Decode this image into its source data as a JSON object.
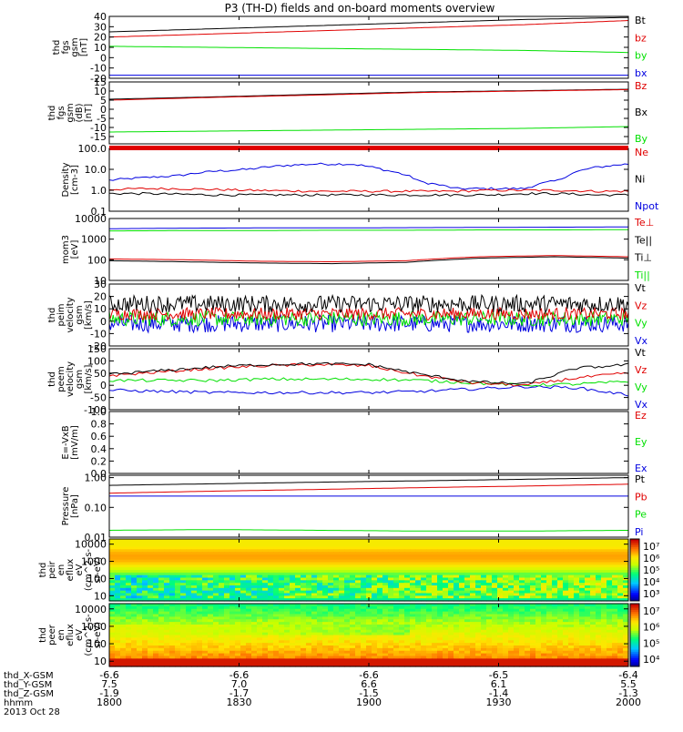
{
  "title": "P3 (TH-D) fields and on-board moments overview",
  "colors": {
    "black": "#000000",
    "red": "#e00000",
    "green": "#00e000",
    "blue": "#0000e0",
    "white": "#ffffff"
  },
  "panels": [
    {
      "ylabel": [
        "thd",
        "fgs",
        "gsm",
        "[nT]"
      ],
      "ticks": [
        "40",
        "30",
        "20",
        "10",
        "0",
        "-10",
        "-20"
      ],
      "ylim": [
        -20,
        40
      ],
      "scale": "linear",
      "legend": [
        {
          "text": "Bt",
          "color": "black"
        },
        {
          "text": "bz",
          "color": "red"
        },
        {
          "text": "by",
          "color": "green"
        },
        {
          "text": "bx",
          "color": "blue"
        }
      ],
      "series": [
        {
          "name": "Bt",
          "color": "black",
          "values": [
            25,
            28,
            31,
            34,
            37,
            39
          ]
        },
        {
          "name": "bz",
          "color": "red",
          "values": [
            20,
            23,
            26,
            29,
            32,
            36
          ]
        },
        {
          "name": "by",
          "color": "green",
          "values": [
            11,
            10,
            9,
            8,
            7,
            5
          ]
        },
        {
          "name": "bx",
          "color": "blue",
          "values": [
            -17,
            -17,
            -17,
            -17,
            -17,
            -17
          ]
        }
      ]
    },
    {
      "ylabel": [
        "thd",
        "fgs",
        "gsm",
        "(dB)",
        "[nT]"
      ],
      "ticks": [
        "15",
        "10",
        "5",
        "0",
        "-5",
        "-10",
        "-15"
      ],
      "ylim": [
        -19,
        15
      ],
      "scale": "linear",
      "legend": [
        {
          "text": "Bz",
          "color": "red"
        },
        {
          "text": "Bx",
          "color": "black"
        },
        {
          "text": "By",
          "color": "green"
        }
      ],
      "series": [
        {
          "name": "Bx",
          "color": "black",
          "values": [
            5.5,
            6.8,
            8.2,
            9.5,
            10.2,
            11
          ]
        },
        {
          "name": "Bz",
          "color": "red",
          "values": [
            5,
            6.5,
            7.8,
            9.2,
            10,
            10.8
          ]
        },
        {
          "name": "By",
          "color": "green",
          "values": [
            -12.5,
            -12,
            -11.5,
            -11,
            -10.5,
            -9.5
          ]
        }
      ]
    },
    {
      "ylabel": [
        "Density",
        "[cm-3]"
      ],
      "ticks": [
        "100.0",
        "10.0",
        "1.0",
        "0.1"
      ],
      "ylim": [
        0.1,
        100
      ],
      "scale": "log",
      "legend": [
        {
          "text": "Ne",
          "color": "red"
        },
        {
          "text": "Ni",
          "color": "black"
        },
        {
          "text": "Npot",
          "color": "blue"
        }
      ],
      "series": [
        {
          "name": "Npot",
          "color": "blue",
          "values": [
            3,
            4,
            5,
            8,
            10,
            15,
            18,
            18,
            9,
            2.5,
            1.2,
            1.2,
            1.2,
            3,
            12,
            18
          ]
        },
        {
          "name": "Ne",
          "color": "red",
          "values": [
            1.1,
            1.2,
            1.2,
            1.1,
            1.0,
            0.95,
            0.9,
            0.9,
            0.9,
            0.9,
            0.9,
            1.0,
            1.0,
            1.0,
            0.9,
            0.9
          ]
        },
        {
          "name": "Ni",
          "color": "black",
          "values": [
            0.7,
            0.7,
            0.65,
            0.6,
            0.6,
            0.6,
            0.6,
            0.6,
            0.6,
            0.6,
            0.6,
            0.6,
            0.7,
            0.7,
            0.6,
            0.6
          ]
        }
      ]
    },
    {
      "ylabel": [
        "mom3",
        "[eV]"
      ],
      "ticks": [
        "10000",
        "1000",
        "100",
        "10"
      ],
      "ylim": [
        10,
        10000
      ],
      "scale": "log",
      "legend": [
        {
          "text": "Te⊥",
          "color": "red"
        },
        {
          "text": "Te||",
          "color": "black"
        },
        {
          "text": "Ti⊥",
          "color": "black"
        },
        {
          "text": "Ti||",
          "color": "green"
        }
      ],
      "series": [
        {
          "name": "Ti⊥",
          "color": "blue",
          "values": [
            3200,
            3400,
            3500,
            3500,
            3600,
            3700,
            3800,
            3900
          ]
        },
        {
          "name": "Ti||",
          "color": "green",
          "values": [
            2500,
            2600,
            2600,
            2700,
            2700,
            2800,
            2800,
            2900
          ]
        },
        {
          "name": "Te⊥",
          "color": "red",
          "values": [
            110,
            100,
            85,
            80,
            90,
            140,
            160,
            140
          ]
        },
        {
          "name": "Te||",
          "color": "black",
          "values": [
            90,
            80,
            70,
            65,
            75,
            120,
            140,
            120
          ]
        }
      ]
    },
    {
      "ylabel": [
        "thd",
        "peim",
        "velocity",
        "gsm",
        "[km/s]"
      ],
      "ticks": [
        "30",
        "20",
        "10",
        "0",
        "-10",
        "-20"
      ],
      "ylim": [
        -20,
        30
      ],
      "scale": "linear",
      "legend": [
        {
          "text": "Vt",
          "color": "black"
        },
        {
          "text": "Vz",
          "color": "red"
        },
        {
          "text": "Vy",
          "color": "green"
        },
        {
          "text": "Vx",
          "color": "blue"
        }
      ],
      "series": [
        {
          "name": "Vx",
          "color": "blue",
          "mean": -2,
          "noise": 7
        },
        {
          "name": "Vy",
          "color": "green",
          "mean": 2,
          "noise": 6
        },
        {
          "name": "Vz",
          "color": "red",
          "mean": 6,
          "noise": 5
        },
        {
          "name": "Vt",
          "color": "black",
          "mean": 14,
          "noise": 7
        }
      ]
    },
    {
      "ylabel": [
        "thd",
        "peem",
        "velocity",
        "gsm",
        "[km/s]"
      ],
      "ticks": [
        "150",
        "100",
        "50",
        "0",
        "-50",
        "-100"
      ],
      "ylim": [
        -100,
        150
      ],
      "scale": "linear",
      "legend": [
        {
          "text": "Vt",
          "color": "black"
        },
        {
          "text": "Vz",
          "color": "red"
        },
        {
          "text": "Vy",
          "color": "green"
        },
        {
          "text": "Vx",
          "color": "blue"
        }
      ],
      "series": [
        {
          "name": "Vx",
          "color": "blue",
          "values": [
            -20,
            -25,
            -30,
            -30,
            -30,
            -30,
            -25,
            -15,
            -5,
            -10,
            -40
          ]
        },
        {
          "name": "Vy",
          "color": "green",
          "values": [
            20,
            20,
            20,
            25,
            25,
            25,
            20,
            10,
            0,
            5,
            15
          ]
        },
        {
          "name": "Vz",
          "color": "red",
          "values": [
            40,
            55,
            70,
            80,
            85,
            80,
            40,
            10,
            0,
            30,
            50
          ]
        },
        {
          "name": "Vt",
          "color": "black",
          "values": [
            45,
            60,
            75,
            85,
            88,
            85,
            45,
            15,
            5,
            70,
            85
          ]
        }
      ]
    },
    {
      "ylabel": [
        "E=-VxB",
        "[mV/m]"
      ],
      "ticks": [
        "1.0",
        "0.8",
        "0.6",
        "0.4",
        "0.2",
        "0.0"
      ],
      "ylim": [
        0,
        1
      ],
      "scale": "linear",
      "legend": [
        {
          "text": "Ez",
          "color": "red"
        },
        {
          "text": "Ey",
          "color": "green"
        },
        {
          "text": "Ex",
          "color": "blue"
        }
      ],
      "series": []
    },
    {
      "ylabel": [
        "Pressure",
        "[nPa]"
      ],
      "ticks": [
        "1.00",
        "0.10",
        "0.01"
      ],
      "ylim": [
        0.01,
        1.2
      ],
      "scale": "log",
      "legend": [
        {
          "text": "Pt",
          "color": "black"
        },
        {
          "text": "Pb",
          "color": "red"
        },
        {
          "text": "Pe",
          "color": "green"
        },
        {
          "text": "Pi",
          "color": "blue"
        }
      ],
      "series": [
        {
          "name": "Pt",
          "color": "black",
          "values": [
            0.55,
            0.62,
            0.7,
            0.78,
            0.88,
            1.0
          ]
        },
        {
          "name": "Pb",
          "color": "red",
          "values": [
            0.3,
            0.35,
            0.4,
            0.46,
            0.52,
            0.6
          ]
        },
        {
          "name": "Pi",
          "color": "blue",
          "values": [
            0.24,
            0.24,
            0.24,
            0.24,
            0.24,
            0.24
          ]
        },
        {
          "name": "Pe",
          "color": "green",
          "values": [
            0.017,
            0.018,
            0.017,
            0.016,
            0.016,
            0.017
          ]
        }
      ]
    },
    {
      "ylabel": [
        "thd",
        "peir",
        "en",
        "eflux",
        "eV",
        "(cm^2-s-",
        "sr-eV)"
      ],
      "ticks": [
        "10000",
        "1000",
        "100",
        "10"
      ],
      "ylim": [
        5,
        20000
      ],
      "scale": "log",
      "kind": "spectrogram",
      "cbar": [
        "10⁷",
        "10⁶",
        "10⁵",
        "10⁴",
        "10³"
      ]
    },
    {
      "ylabel": [
        "thd",
        "peer",
        "en",
        "eflux",
        "eV",
        "(cm^2-s-",
        "sr-eV)"
      ],
      "ticks": [
        "10000",
        "1000",
        "100",
        "10"
      ],
      "ylim": [
        5,
        20000
      ],
      "scale": "log",
      "kind": "spectrogram",
      "cbar": [
        "10⁷",
        "10⁶",
        "10⁵",
        "10⁴"
      ]
    }
  ],
  "xaxis": {
    "rows": [
      {
        "label": "thd_X-GSM",
        "values": [
          "-6.6",
          "-6.6",
          "-6.6",
          "-6.5",
          "-6.4"
        ]
      },
      {
        "label": "thd_Y-GSM",
        "values": [
          "7.5",
          "7.0",
          "6.6",
          "6.1",
          "5.5"
        ]
      },
      {
        "label": "thd_Z-GSM",
        "values": [
          "-1.9",
          "-1.7",
          "-1.5",
          "-1.4",
          "-1.3"
        ]
      },
      {
        "label": "hhmm",
        "values": [
          "1800",
          "1830",
          "1900",
          "1930",
          "2000"
        ]
      }
    ],
    "date": "2013 Oct 28"
  }
}
